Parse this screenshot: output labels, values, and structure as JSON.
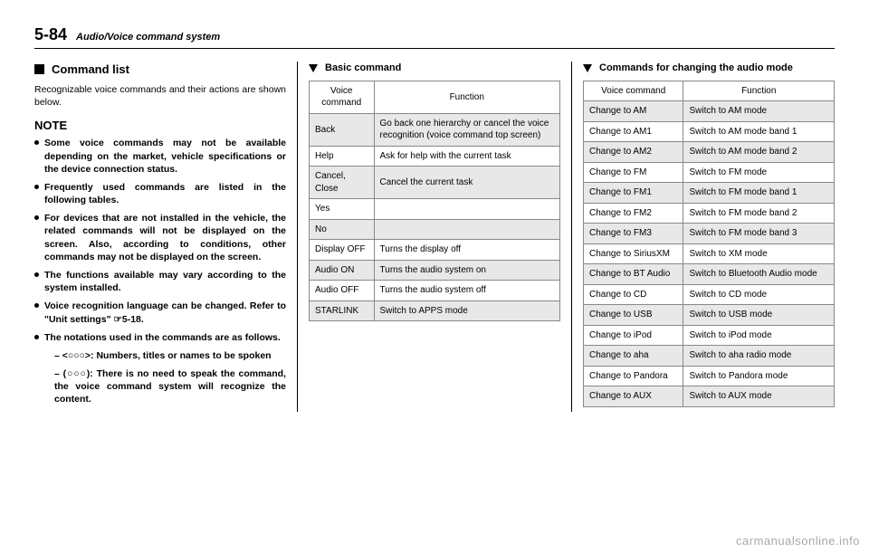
{
  "header": {
    "page_number": "5-84",
    "section": "Audio/Voice command system"
  },
  "col1": {
    "heading": "Command list",
    "intro": "Recognizable voice commands and their actions are shown below.",
    "note_label": "NOTE",
    "notes": [
      "Some voice commands may not be available depending on the market, vehicle specifications or the device connection status.",
      "Frequently used commands are listed in the following tables.",
      "For devices that are not installed in the vehicle, the related commands will not be displayed on the screen. Also, according to conditions, other commands may not be displayed on the screen.",
      "The functions available may vary according to the system installed.",
      "Voice recognition language can be changed. Refer to \"Unit settings\" ☞5-18.",
      "The notations used in the commands are as follows."
    ],
    "subnotes": [
      "– <○○○>: Numbers, titles or names to be spoken",
      "– (○○○): There is no need to speak the command, the voice command system will recognize the content."
    ]
  },
  "col2": {
    "heading": "Basic command",
    "table": {
      "headers": [
        "Voice command",
        "Function"
      ],
      "rows": [
        [
          "Back",
          "Go back one hierarchy or cancel the voice recognition (voice command top screen)"
        ],
        [
          "Help",
          "Ask for help with the current task"
        ],
        [
          "Cancel, Close",
          "Cancel the current task"
        ],
        [
          "Yes",
          ""
        ],
        [
          "No",
          ""
        ],
        [
          "Display OFF",
          "Turns the display off"
        ],
        [
          "Audio ON",
          "Turns the audio system on"
        ],
        [
          "Audio OFF",
          "Turns the audio system off"
        ],
        [
          "STARLINK",
          "Switch to APPS mode"
        ]
      ]
    }
  },
  "col3": {
    "heading": "Commands for changing the audio mode",
    "table": {
      "headers": [
        "Voice command",
        "Function"
      ],
      "rows": [
        [
          "Change to AM",
          "Switch to AM mode"
        ],
        [
          "Change to AM1",
          "Switch to AM mode band 1"
        ],
        [
          "Change to AM2",
          "Switch to AM mode band 2"
        ],
        [
          "Change to FM",
          "Switch to FM mode"
        ],
        [
          "Change to FM1",
          "Switch to FM mode band 1"
        ],
        [
          "Change to FM2",
          "Switch to FM mode band 2"
        ],
        [
          "Change to FM3",
          "Switch to FM mode band 3"
        ],
        [
          "Change to SiriusXM",
          "Switch to XM mode"
        ],
        [
          "Change to BT Audio",
          "Switch to Bluetooth Audio mode"
        ],
        [
          "Change to CD",
          "Switch to CD mode"
        ],
        [
          "Change to USB",
          "Switch to USB mode"
        ],
        [
          "Change to iPod",
          "Switch to iPod mode"
        ],
        [
          "Change to aha",
          "Switch to aha radio mode"
        ],
        [
          "Change to Pandora",
          "Switch to Pandora mode"
        ],
        [
          "Change to AUX",
          "Switch to AUX mode"
        ]
      ]
    }
  },
  "watermark": "carmanualsonline.info"
}
